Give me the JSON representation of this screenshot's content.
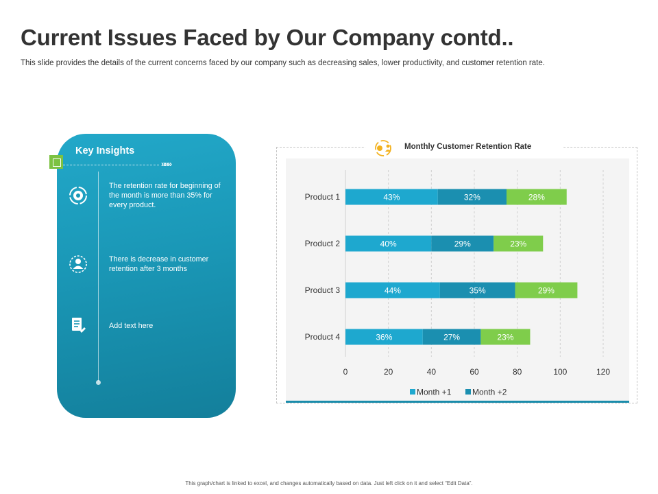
{
  "title": "Current Issues Faced by Our Company contd..",
  "subtitle": "This slide provides  the details of the current concerns  faced by our company  such as decreasing sales, lower productivity,  and customer retention rate.",
  "insights": {
    "title": "Key Insights",
    "items": [
      {
        "icon": "gear-refresh-icon",
        "text": "The retention rate for beginning of the month is more than 35% for every product."
      },
      {
        "icon": "user-cycle-icon",
        "text": "There is decrease in customer retention after 3 months"
      },
      {
        "icon": "document-edit-icon",
        "text": "Add text here"
      }
    ]
  },
  "chart_data": {
    "type": "bar",
    "orientation": "horizontal",
    "stacked": true,
    "title": "Monthly Customer Retention Rate",
    "categories": [
      "Product 1",
      "Product 2",
      "Product 3",
      "Product 4"
    ],
    "series": [
      {
        "name": "Month +1",
        "color": "#1ea8cf",
        "values": [
          43,
          40,
          44,
          36
        ],
        "labels": [
          "43%",
          "40%",
          "44%",
          "36%"
        ]
      },
      {
        "name": "Month +2",
        "color": "#1b8fb0",
        "values": [
          32,
          29,
          35,
          27
        ],
        "labels": [
          "32%",
          "29%",
          "35%",
          "27%"
        ]
      },
      {
        "name": "",
        "color": "#7fcd4b",
        "values": [
          28,
          23,
          29,
          23
        ],
        "labels": [
          "28%",
          "23%",
          "29%",
          "23%"
        ]
      }
    ],
    "xlim": [
      0,
      120
    ],
    "xticks": [
      0,
      20,
      40,
      60,
      80,
      100,
      120
    ],
    "grid": true,
    "legend": "bottom",
    "legend_entries": [
      "Month +1",
      "Month +2"
    ]
  },
  "footer": "This graph/chart is linked to excel, and changes automatically based on data. Just left click on it and select “Edit Data”."
}
